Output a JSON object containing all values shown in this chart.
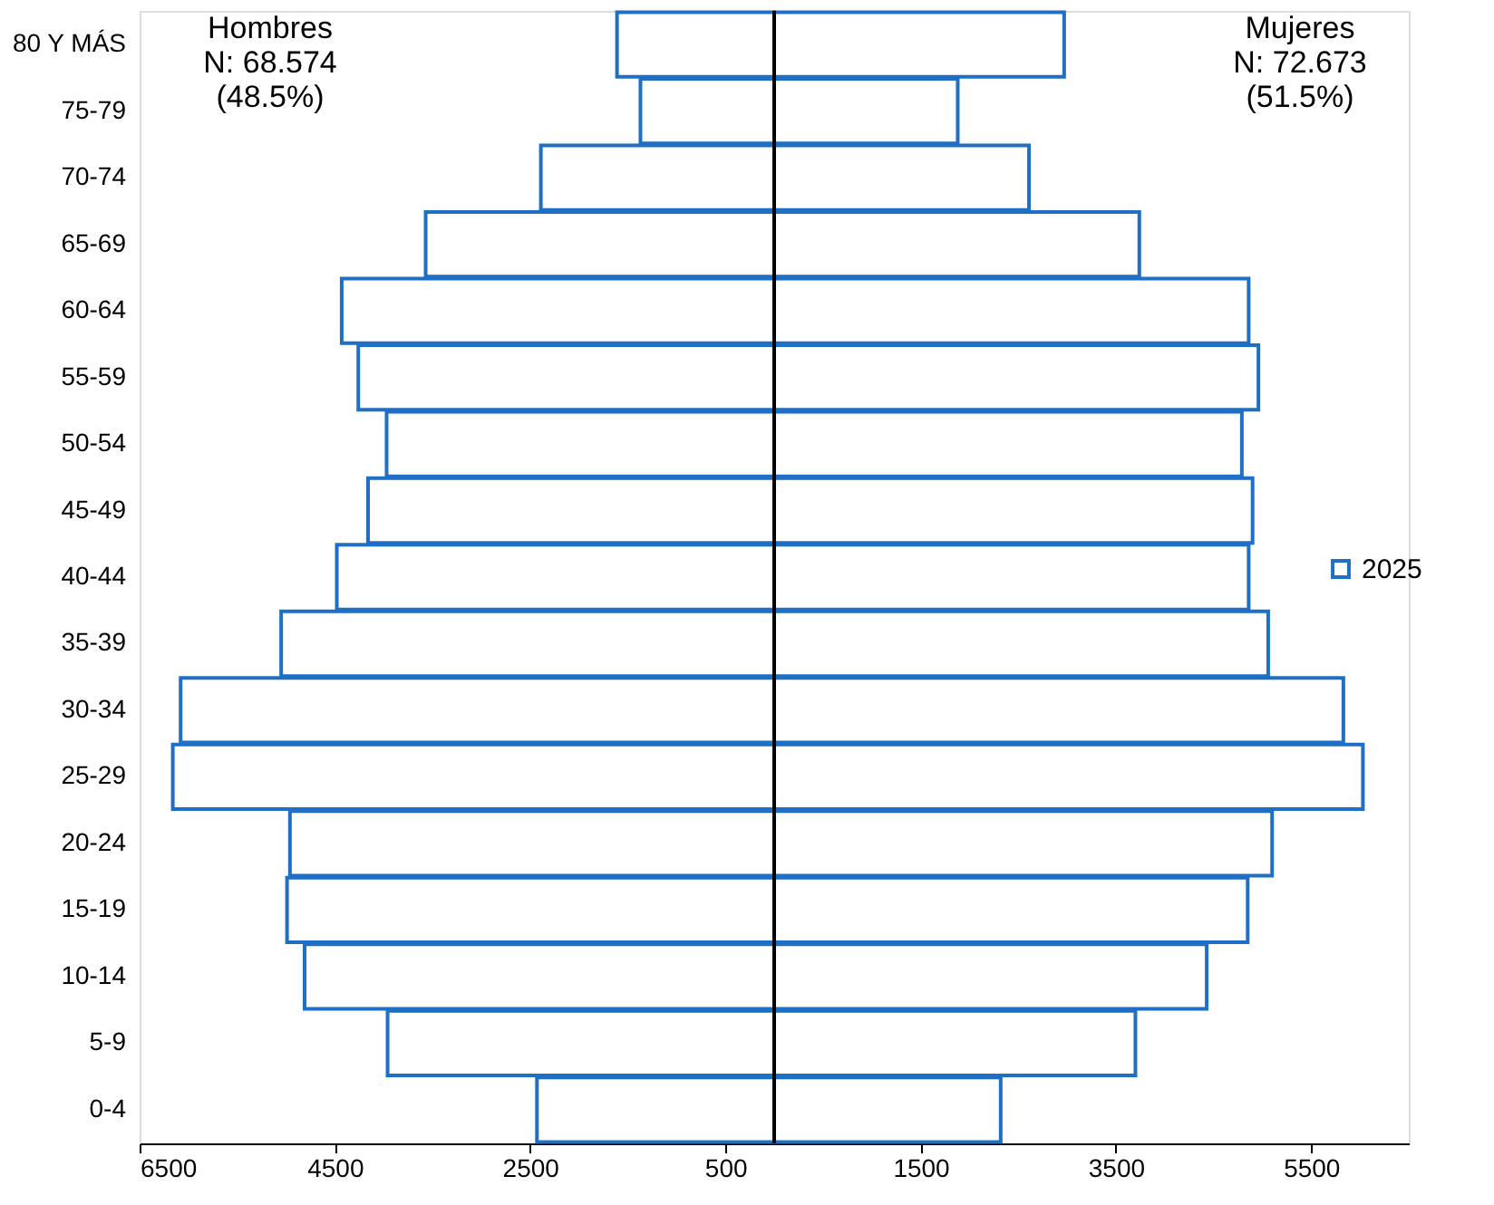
{
  "chart_data": {
    "type": "bar",
    "orientation": "horizontal",
    "stacked": true,
    "categories": [
      "80 Y MÁS",
      "75-79",
      "70-74",
      "65-69",
      "60-64",
      "55-59",
      "50-54",
      "45-49",
      "40-44",
      "35-39",
      "30-34",
      "25-29",
      "20-24",
      "15-19",
      "10-14",
      "5-9",
      "0-4"
    ],
    "series": [
      {
        "name": "2025",
        "color": "#1f6fc5",
        "values": [
          -1610,
          -1370,
          -2390,
          -3570,
          -4430,
          -4260,
          -3970,
          -4160,
          -4480,
          -5050,
          -6080,
          -6160,
          -4960,
          -4990,
          -4810,
          -3960,
          -2430
        ]
      },
      {
        "color": "#1f6fc5",
        "values": [
          2970,
          1880,
          2610,
          3740,
          4860,
          4960,
          4790,
          4900,
          4860,
          5060,
          5830,
          6030,
          5100,
          4850,
          4430,
          3700,
          2320
        ]
      }
    ],
    "xlim": [
      -6500,
      6500
    ],
    "xticks": [
      {
        "value": -6500,
        "label": "6500"
      },
      {
        "value": -4500,
        "label": "4500"
      },
      {
        "value": -2500,
        "label": "2500"
      },
      {
        "value": -500,
        "label": "500"
      },
      1500,
      3500,
      5500
    ],
    "ref_lines": [
      {
        "axis": "x",
        "value": 0,
        "color": "#000000"
      }
    ],
    "annotations": [
      "Hombres\nN: 68.574\n(48.5%)",
      "Mujeres\nN: 72.673\n(51.5%)"
    ],
    "legend": "right",
    "grid": false
  }
}
